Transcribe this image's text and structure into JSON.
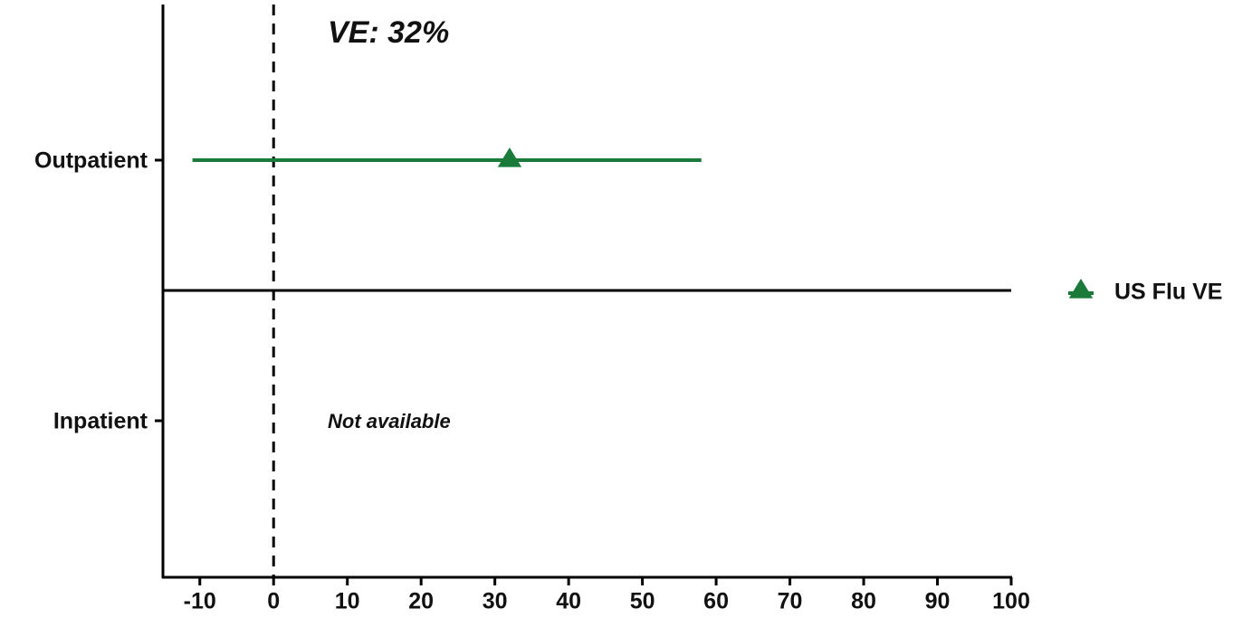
{
  "chart_data": {
    "type": "forest",
    "categories": [
      "Outpatient",
      "Inpatient"
    ],
    "series": [
      {
        "name": "US Flu VE",
        "color": "#1a7a3a",
        "values": [
          32,
          null
        ],
        "lower": [
          -11,
          null
        ],
        "upper": [
          58,
          null
        ]
      }
    ],
    "annotations": [
      "VE: 32%",
      "Not available"
    ],
    "reference_line": 0,
    "xlim": [
      -15,
      100
    ],
    "xticks": [
      -10,
      0,
      10,
      20,
      30,
      40,
      50,
      60,
      70,
      80,
      90,
      100
    ]
  }
}
